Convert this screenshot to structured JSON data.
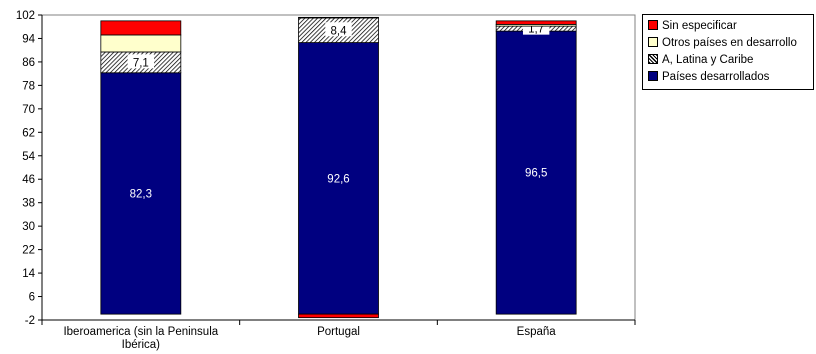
{
  "chart_data": {
    "type": "bar",
    "stacked": true,
    "categories": [
      "Iberoamerica (sin la Peninsula Ibérica)",
      "Portugal",
      "España"
    ],
    "category_lines": [
      [
        "Iberoamerica (sin la Peninsula",
        "Ibérica)"
      ],
      [
        "Portugal"
      ],
      [
        "España"
      ]
    ],
    "series": [
      {
        "name": "Países desarrollados",
        "values": [
          82.3,
          92.6,
          96.5
        ],
        "color": "#000080",
        "pattern": "solid",
        "labels": [
          "82,3",
          "92,6",
          "96,5"
        ],
        "label_color": "#ffffff"
      },
      {
        "name": "A, Latina y Caribe",
        "values": [
          7.1,
          8.4,
          1.7
        ],
        "color": "#000000",
        "pattern": "hatch",
        "labels": [
          "7,1",
          "8,4",
          "1,7"
        ],
        "label_color": "#000000"
      },
      {
        "name": "Otros países en desarrollo",
        "values": [
          5.8,
          0.2,
          0.6
        ],
        "color": "#ffffcc",
        "pattern": "solid"
      },
      {
        "name": "Sin especificar",
        "values": [
          4.8,
          -1.2,
          1.2
        ],
        "color": "#ff0000",
        "pattern": "solid"
      }
    ],
    "legend_order": [
      "Sin especificar",
      "Otros países en desarrollo",
      "A, Latina y Caribe",
      "Países desarrollados"
    ],
    "legend_position": "right",
    "y_ticks": [
      "102",
      "94",
      "86",
      "78",
      "70",
      "62",
      "54",
      "46",
      "38",
      "30",
      "22",
      "14",
      "6",
      "-2"
    ],
    "ylim": [
      -2,
      102
    ],
    "grid": false,
    "title": "",
    "xlabel": "",
    "ylabel": ""
  }
}
